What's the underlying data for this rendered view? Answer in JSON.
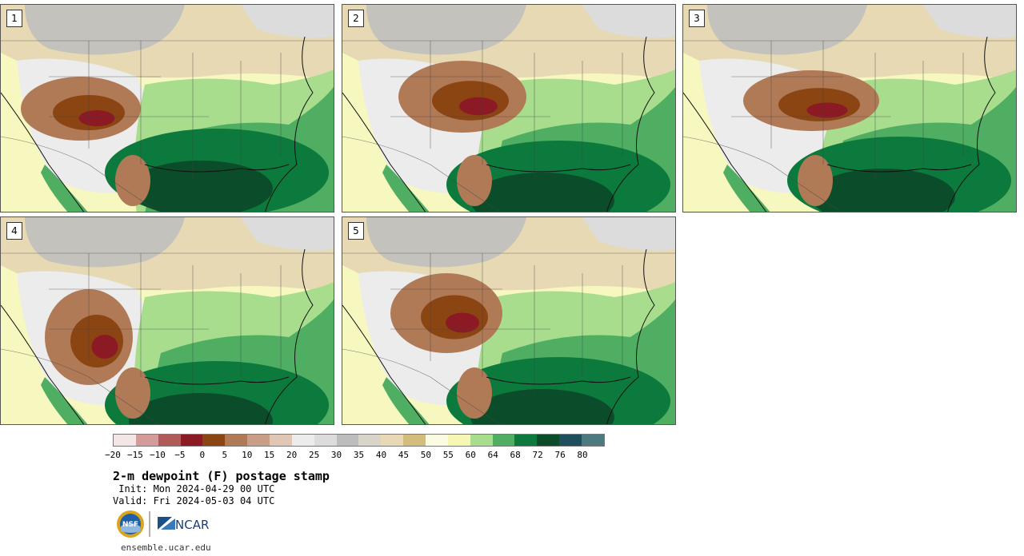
{
  "panels": [
    {
      "label": "1",
      "variant": "a"
    },
    {
      "label": "2",
      "variant": "b"
    },
    {
      "label": "3",
      "variant": "c"
    },
    {
      "label": "4",
      "variant": "d"
    },
    {
      "label": "5",
      "variant": "e"
    }
  ],
  "colorbar": {
    "ticks": [
      "−20",
      "−15",
      "−10",
      "−5",
      "0",
      "5",
      "10",
      "15",
      "20",
      "25",
      "30",
      "35",
      "40",
      "45",
      "50",
      "55",
      "60",
      "64",
      "68",
      "72",
      "76",
      "80"
    ],
    "colors": [
      "#f2e6e6",
      "#d49b9b",
      "#b05a5a",
      "#8c1a24",
      "#8b4513",
      "#b07a57",
      "#c99e86",
      "#e1c6b5",
      "#ececec",
      "#dcdcdc",
      "#bdbdbd",
      "#d8d5c8",
      "#e6d9b3",
      "#d4bd7c",
      "#fbfbe2",
      "#f7f7b5",
      "#a8dd8e",
      "#4fae62",
      "#0c7a3c",
      "#0b4d2b",
      "#1f4f5f",
      "#4c7a7e"
    ]
  },
  "title": "2-m dewpoint (F) postage stamp",
  "init": " Init: Mon 2024-04-29 00 UTC",
  "valid": "Valid: Fri 2024-05-03 04 UTC",
  "logos": {
    "nsf": "NSF",
    "ncar": "NCAR"
  },
  "footer": "ensemble.ucar.edu"
}
